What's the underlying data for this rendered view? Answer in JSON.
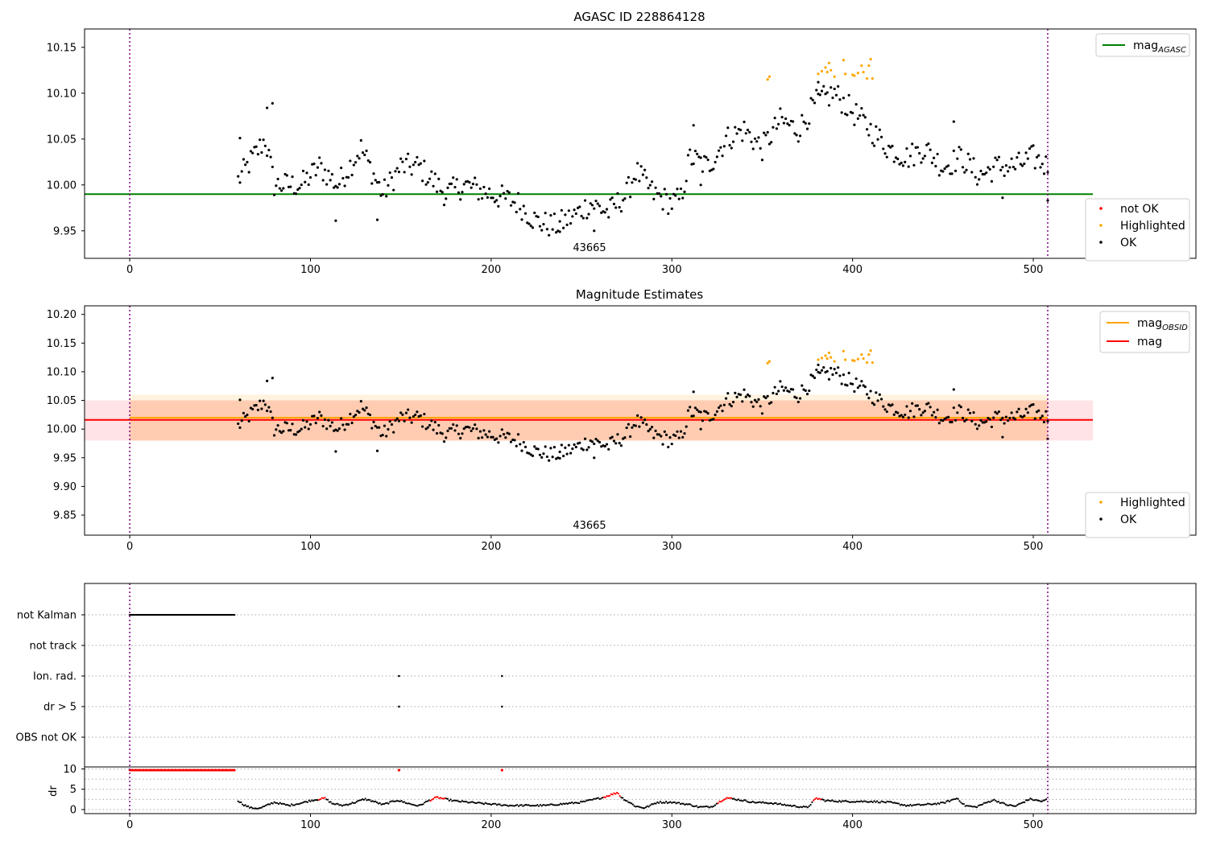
{
  "chart_data": [
    {
      "type": "scatter",
      "title": "AGASC ID 228864128",
      "annotation": "43665",
      "xlim": [
        -25,
        590
      ],
      "ylim": [
        9.92,
        10.17
      ],
      "xticks": [
        0,
        100,
        200,
        300,
        400,
        500
      ],
      "yticks": [
        9.95,
        10.0,
        10.05,
        10.1,
        10.15
      ],
      "ytick_labels": [
        "9.95",
        "10.00",
        "10.05",
        "10.10",
        "10.15"
      ],
      "vlines": [
        0,
        508
      ],
      "hline": {
        "name": "mag",
        "subscript": "AGASC",
        "y": 9.99,
        "x": [
          -25,
          533
        ],
        "color": "#008000"
      },
      "legend_lines": [
        {
          "name": "mag",
          "subscript": "AGASC",
          "color": "#008000"
        }
      ],
      "legend_points": [
        {
          "name": "not OK",
          "color": "#ff0000"
        },
        {
          "name": "Highlighted",
          "color": "#ffa500"
        },
        {
          "name": "OK",
          "color": "#000000"
        }
      ],
      "series": [
        {
          "name": "OK",
          "color": "#000000",
          "keyframes": [
            [
              60,
              10.005
            ],
            [
              75,
              10.05
            ],
            [
              80,
              10.0
            ],
            [
              95,
              10.0
            ],
            [
              105,
              10.02
            ],
            [
              115,
              10.0
            ],
            [
              128,
              10.04
            ],
            [
              140,
              9.99
            ],
            [
              150,
              10.02
            ],
            [
              160,
              10.02
            ],
            [
              175,
              9.99
            ],
            [
              185,
              10.0
            ],
            [
              200,
              9.99
            ],
            [
              215,
              9.98
            ],
            [
              225,
              9.96
            ],
            [
              235,
              9.955
            ],
            [
              245,
              9.965
            ],
            [
              255,
              9.98
            ],
            [
              265,
              9.97
            ],
            [
              275,
              9.99
            ],
            [
              280,
              10.015
            ],
            [
              290,
              9.99
            ],
            [
              300,
              9.98
            ],
            [
              305,
              9.985
            ],
            [
              310,
              10.03
            ],
            [
              320,
              10.02
            ],
            [
              330,
              10.05
            ],
            [
              340,
              10.06
            ],
            [
              350,
              10.04
            ],
            [
              360,
              10.07
            ],
            [
              370,
              10.06
            ],
            [
              380,
              10.09
            ],
            [
              390,
              10.1
            ],
            [
              400,
              10.08
            ],
            [
              410,
              10.06
            ],
            [
              420,
              10.04
            ],
            [
              430,
              10.03
            ],
            [
              440,
              10.04
            ],
            [
              450,
              10.02
            ],
            [
              460,
              10.03
            ],
            [
              470,
              10.01
            ],
            [
              480,
              10.02
            ],
            [
              490,
              10.02
            ],
            [
              500,
              10.03
            ],
            [
              508,
              10.02
            ]
          ]
        },
        {
          "name": "Highlighted",
          "color": "#ffa500",
          "points": [
            [
              353,
              10.115
            ],
            [
              354,
              10.118
            ],
            [
              381,
              10.121
            ],
            [
              383,
              10.124
            ],
            [
              385,
              10.128
            ],
            [
              386,
              10.123
            ],
            [
              388,
              10.125
            ],
            [
              390,
              10.118
            ],
            [
              395,
              10.136
            ],
            [
              400,
              10.12
            ],
            [
              401,
              10.119
            ],
            [
              403,
              10.122
            ],
            [
              405,
              10.13
            ],
            [
              406,
              10.123
            ],
            [
              408,
              10.116
            ],
            [
              409,
              10.13
            ],
            [
              410,
              10.137
            ],
            [
              411,
              10.116
            ],
            [
              396,
              10.121
            ],
            [
              387,
              10.133
            ]
          ]
        },
        {
          "name": "not OK",
          "color": "#ff0000",
          "points": []
        }
      ]
    },
    {
      "type": "scatter",
      "title": "Magnitude Estimates",
      "annotation": "43665",
      "xlim": [
        -25,
        590
      ],
      "ylim": [
        9.815,
        10.215
      ],
      "xticks": [
        0,
        100,
        200,
        300,
        400,
        500
      ],
      "yticks": [
        9.85,
        9.9,
        9.95,
        10.0,
        10.05,
        10.1,
        10.15,
        10.2
      ],
      "ytick_labels": [
        "9.85",
        "9.90",
        "9.95",
        "10.00",
        "10.05",
        "10.10",
        "10.15",
        "10.20"
      ],
      "vlines": [
        0,
        508
      ],
      "bands": [
        {
          "y": [
            9.98,
            10.05
          ],
          "x": [
            -25,
            533
          ],
          "color": "#ffc0c8",
          "opacity": 0.45
        },
        {
          "y": [
            9.98,
            10.06
          ],
          "x": [
            0,
            508
          ],
          "color": "#ffd9a0",
          "opacity": 0.35
        },
        {
          "y": [
            9.98,
            10.05
          ],
          "x": [
            0,
            508
          ],
          "color": "#ffa070",
          "opacity": 0.3
        }
      ],
      "hlines": [
        {
          "name": "mag",
          "subscript": "OBSID",
          "y": 10.02,
          "x": [
            0,
            508
          ],
          "color": "#ffa500"
        },
        {
          "name": "mag",
          "subscript": "",
          "y": 10.016,
          "x": [
            -25,
            533
          ],
          "color": "#ff0000"
        }
      ],
      "legend_lines": [
        {
          "name": "mag",
          "subscript": "OBSID",
          "color": "#ffa500"
        },
        {
          "name": "mag",
          "subscript": "",
          "color": "#ff0000"
        }
      ],
      "legend_points": [
        {
          "name": "Highlighted",
          "color": "#ffa500"
        },
        {
          "name": "OK",
          "color": "#000000"
        }
      ]
    },
    {
      "type": "scatter",
      "title": "",
      "xlim": [
        -25,
        590
      ],
      "xticks": [
        0,
        100,
        200,
        300,
        400,
        500
      ],
      "vlines": [
        0,
        508
      ],
      "flag_categories": [
        "not Kalman",
        "not track",
        "Ion. rad.",
        "dr > 5",
        "OBS not OK"
      ],
      "flag_points": [
        {
          "category": "not Kalman",
          "x_range": [
            0,
            58
          ]
        },
        {
          "category": "Ion. rad.",
          "x": [
            149,
            206
          ]
        },
        {
          "category": "dr > 5",
          "x": [
            149,
            206
          ]
        }
      ],
      "dr_axis": {
        "ylabel": "dr",
        "ylim": [
          -1,
          10.5
        ],
        "yticks": [
          0,
          5,
          10
        ]
      },
      "dr_series": {
        "red_at_10": {
          "x_range": [
            0,
            58
          ],
          "y": 9.7
        },
        "red_isolated": [
          [
            149,
            9.7
          ],
          [
            206,
            9.7
          ]
        ],
        "black_keyframes": [
          [
            60,
            2.2
          ],
          [
            63,
            1.2
          ],
          [
            67,
            0.4
          ],
          [
            72,
            0.3
          ],
          [
            80,
            1.8
          ],
          [
            88,
            1.0
          ],
          [
            95,
            1.6
          ],
          [
            100,
            2.2
          ],
          [
            108,
            2.8
          ],
          [
            112,
            1.5
          ],
          [
            118,
            1.0
          ],
          [
            125,
            1.8
          ],
          [
            130,
            2.6
          ],
          [
            135,
            2.0
          ],
          [
            140,
            1.2
          ],
          [
            148,
            2.3
          ],
          [
            155,
            1.4
          ],
          [
            160,
            0.9
          ],
          [
            165,
            2.1
          ],
          [
            170,
            3.0
          ],
          [
            180,
            2.1
          ],
          [
            195,
            1.5
          ],
          [
            210,
            1.0
          ],
          [
            230,
            1.0
          ],
          [
            250,
            1.8
          ],
          [
            262,
            3.0
          ],
          [
            270,
            4.2
          ],
          [
            272,
            3.0
          ],
          [
            280,
            0.8
          ],
          [
            285,
            0.4
          ],
          [
            292,
            1.8
          ],
          [
            300,
            1.8
          ],
          [
            310,
            1.2
          ],
          [
            315,
            0.6
          ],
          [
            322,
            0.7
          ],
          [
            330,
            2.9
          ],
          [
            340,
            2.2
          ],
          [
            345,
            1.8
          ],
          [
            355,
            1.6
          ],
          [
            365,
            1.0
          ],
          [
            375,
            0.5
          ],
          [
            380,
            2.8
          ],
          [
            385,
            2.2
          ],
          [
            395,
            2.0
          ],
          [
            410,
            2.0
          ],
          [
            420,
            1.8
          ],
          [
            430,
            1.0
          ],
          [
            440,
            1.2
          ],
          [
            450,
            1.6
          ],
          [
            458,
            2.8
          ],
          [
            462,
            1.0
          ],
          [
            468,
            0.6
          ],
          [
            478,
            2.4
          ],
          [
            485,
            1.2
          ],
          [
            490,
            0.8
          ],
          [
            498,
            2.6
          ],
          [
            505,
            2.0
          ],
          [
            508,
            2.6
          ]
        ],
        "red_runs": [
          [
            104,
            108
          ],
          [
            166,
            175
          ],
          [
            262,
            272
          ],
          [
            325,
            333
          ],
          [
            378,
            383
          ]
        ]
      }
    }
  ]
}
